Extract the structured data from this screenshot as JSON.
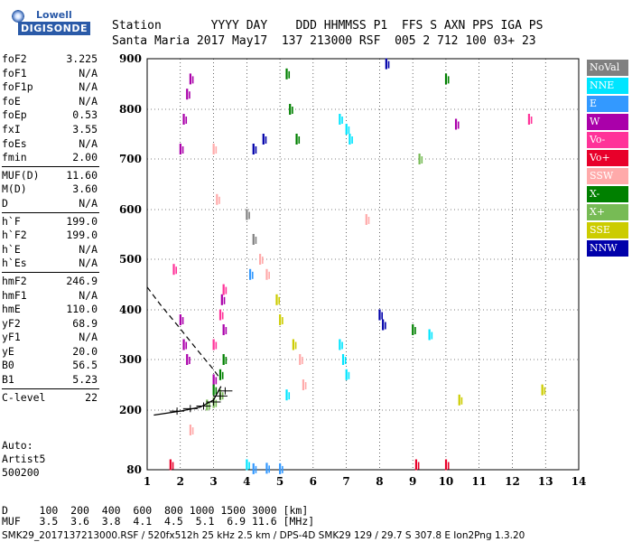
{
  "logo": {
    "line1": "Lowell",
    "line2": "DIGISONDE"
  },
  "header": {
    "row1": "Station       YYYY DAY    DDD HHMMSS P1  FFS S AXN PPS IGA PS",
    "row2": "Santa Maria 2017 May17  137 213000 RSF  005 2 712 100 03+ 23"
  },
  "params": [
    {
      "k": "foF2",
      "v": "3.225"
    },
    {
      "k": "foF1",
      "v": "N/A"
    },
    {
      "k": "foF1p",
      "v": "N/A"
    },
    {
      "k": "foE",
      "v": "N/A"
    },
    {
      "k": "foEp",
      "v": "0.53"
    },
    {
      "k": "fxI",
      "v": "3.55"
    },
    {
      "k": "foEs",
      "v": "N/A"
    },
    {
      "k": "fmin",
      "v": "2.00"
    },
    {
      "k": "MUF(D)",
      "v": "11.60"
    },
    {
      "k": "M(D)",
      "v": "3.60"
    },
    {
      "k": "D",
      "v": "N/A"
    },
    {
      "k": "h`F",
      "v": "199.0"
    },
    {
      "k": "h`F2",
      "v": "199.0"
    },
    {
      "k": "h`E",
      "v": "N/A"
    },
    {
      "k": "h`Es",
      "v": "N/A"
    },
    {
      "k": "hmF2",
      "v": "246.9"
    },
    {
      "k": "hmF1",
      "v": "N/A"
    },
    {
      "k": "hmE",
      "v": "110.0"
    },
    {
      "k": "yF2",
      "v": "68.9"
    },
    {
      "k": "yF1",
      "v": "N/A"
    },
    {
      "k": "yE",
      "v": "20.0"
    },
    {
      "k": "B0",
      "v": "56.5"
    },
    {
      "k": "B1",
      "v": "5.23"
    },
    {
      "k": "C-level",
      "v": "22"
    }
  ],
  "auto": {
    "line1": "Auto:",
    "line2": "Artist5",
    "line3": "500200"
  },
  "legend": [
    {
      "label": "NoVal",
      "bg": "#808080",
      "fg": "#ffffff"
    },
    {
      "label": "NNE",
      "bg": "#00e5ff",
      "fg": "#ffffff"
    },
    {
      "label": "E",
      "bg": "#3399ff",
      "fg": "#ffffff"
    },
    {
      "label": "W",
      "bg": "#aa00aa",
      "fg": "#ffffff"
    },
    {
      "label": "Vo-",
      "bg": "#ff3399",
      "fg": "#ffffff"
    },
    {
      "label": "Vo+",
      "bg": "#e8002a",
      "fg": "#ffffff"
    },
    {
      "label": "SSW",
      "bg": "#ffaaaa",
      "fg": "#ffffff"
    },
    {
      "label": "X-",
      "bg": "#008000",
      "fg": "#ffffff"
    },
    {
      "label": "X+",
      "bg": "#77bb55",
      "fg": "#ffffff"
    },
    {
      "label": "SSE",
      "bg": "#cccc00",
      "fg": "#ffffff"
    },
    {
      "label": "NNW",
      "bg": "#0000aa",
      "fg": "#ffffff"
    }
  ],
  "footer": {
    "row1": "D     100  200  400  600  800 1000 1500 3000 [km]",
    "row2": "MUF   3.5  3.6  3.8  4.1  4.5  5.1  6.9 11.6 [MHz]",
    "source": "SMK29_2017137213000.RSF / 520fx512h 25 kHz 2.5 km / DPS-4D SMK29 129 / 29.7 S 307.8 E Ion2Png 1.3.20"
  },
  "chart_data": {
    "type": "scatter",
    "title": "",
    "xlabel": "",
    "ylabel": "",
    "xlim": [
      1,
      14
    ],
    "ylim": [
      80,
      900
    ],
    "x_ticks": [
      1,
      2,
      3,
      4,
      5,
      6,
      7,
      8,
      9,
      10,
      11,
      12,
      13,
      14
    ],
    "y_ticks": [
      80,
      200,
      300,
      400,
      500,
      600,
      700,
      800,
      900
    ],
    "grid": true,
    "legend_position": "right",
    "series": [
      {
        "name": "W",
        "color": "#aa00aa",
        "points": [
          [
            2.1,
            780
          ],
          [
            2.2,
            830
          ],
          [
            2.3,
            860
          ],
          [
            2.0,
            720
          ],
          [
            2.0,
            380
          ],
          [
            2.1,
            330
          ],
          [
            2.2,
            300
          ],
          [
            3.25,
            420
          ],
          [
            3.3,
            360
          ],
          [
            3.0,
            260
          ],
          [
            10.3,
            770
          ]
        ]
      },
      {
        "name": "NNE",
        "color": "#00e5ff",
        "points": [
          [
            6.8,
            780
          ],
          [
            7.0,
            760
          ],
          [
            7.1,
            740
          ],
          [
            6.9,
            300
          ],
          [
            7.0,
            270
          ],
          [
            6.8,
            330
          ],
          [
            9.5,
            350
          ],
          [
            5.2,
            230
          ],
          [
            4.0,
            90
          ]
        ]
      },
      {
        "name": "X-",
        "color": "#008000",
        "points": [
          [
            5.2,
            870
          ],
          [
            5.3,
            800
          ],
          [
            5.5,
            740
          ],
          [
            3.3,
            300
          ],
          [
            3.2,
            270
          ],
          [
            3.0,
            240
          ],
          [
            9.0,
            360
          ],
          [
            10.0,
            860
          ]
        ]
      },
      {
        "name": "SSW",
        "color": "#ffaaaa",
        "points": [
          [
            3.0,
            720
          ],
          [
            3.1,
            620
          ],
          [
            4.4,
            500
          ],
          [
            4.6,
            470
          ],
          [
            7.6,
            580
          ],
          [
            5.6,
            300
          ],
          [
            5.7,
            250
          ],
          [
            2.3,
            160
          ]
        ]
      },
      {
        "name": "Vo-",
        "color": "#ff3399",
        "points": [
          [
            3.3,
            440
          ],
          [
            3.2,
            390
          ],
          [
            3.0,
            330
          ],
          [
            12.5,
            780
          ],
          [
            1.8,
            480
          ]
        ]
      },
      {
        "name": "NNW",
        "color": "#0000aa",
        "points": [
          [
            4.2,
            720
          ],
          [
            4.5,
            740
          ],
          [
            8.0,
            390
          ],
          [
            8.1,
            370
          ],
          [
            8.2,
            890
          ]
        ]
      },
      {
        "name": "SSE",
        "color": "#cccc00",
        "points": [
          [
            4.9,
            420
          ],
          [
            5.0,
            380
          ],
          [
            5.4,
            330
          ],
          [
            10.4,
            220
          ],
          [
            12.9,
            240
          ]
        ]
      },
      {
        "name": "E",
        "color": "#3399ff",
        "points": [
          [
            4.2,
            82
          ],
          [
            4.6,
            83
          ],
          [
            5.0,
            82
          ],
          [
            4.1,
            470
          ]
        ]
      },
      {
        "name": "X+",
        "color": "#77bb55",
        "points": [
          [
            3.0,
            215
          ],
          [
            3.2,
            230
          ],
          [
            2.8,
            210
          ],
          [
            9.2,
            700
          ]
        ]
      },
      {
        "name": "Vo+",
        "color": "#e8002a",
        "points": [
          [
            1.7,
            90
          ],
          [
            9.1,
            90
          ],
          [
            10.0,
            90
          ]
        ]
      },
      {
        "name": "NoVal",
        "color": "#808080",
        "points": [
          [
            4.0,
            590
          ],
          [
            4.2,
            540
          ]
        ]
      }
    ],
    "profile_curve": {
      "color": "#000000",
      "points": [
        [
          1.2,
          190
        ],
        [
          2.0,
          198
        ],
        [
          2.6,
          206
        ],
        [
          3.0,
          220
        ],
        [
          3.225,
          247
        ]
      ]
    },
    "dashed_curve": {
      "color": "#000000",
      "points": [
        [
          1.0,
          445
        ],
        [
          1.4,
          410
        ],
        [
          1.9,
          370
        ],
        [
          2.5,
          320
        ],
        [
          3.0,
          280
        ],
        [
          3.2,
          262
        ]
      ]
    }
  }
}
